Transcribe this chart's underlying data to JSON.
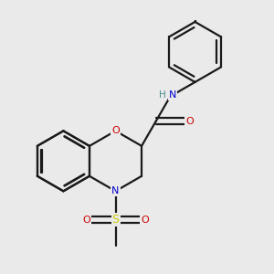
{
  "background_color": "#eaeaea",
  "bond_color": "#1a1a1a",
  "colors": {
    "O": "#cc0000",
    "N": "#0000cc",
    "S": "#cccc00",
    "H": "#4a9090",
    "C": "#1a1a1a"
  },
  "figsize": [
    3.0,
    3.0
  ],
  "dpi": 100,
  "lw": 1.6
}
